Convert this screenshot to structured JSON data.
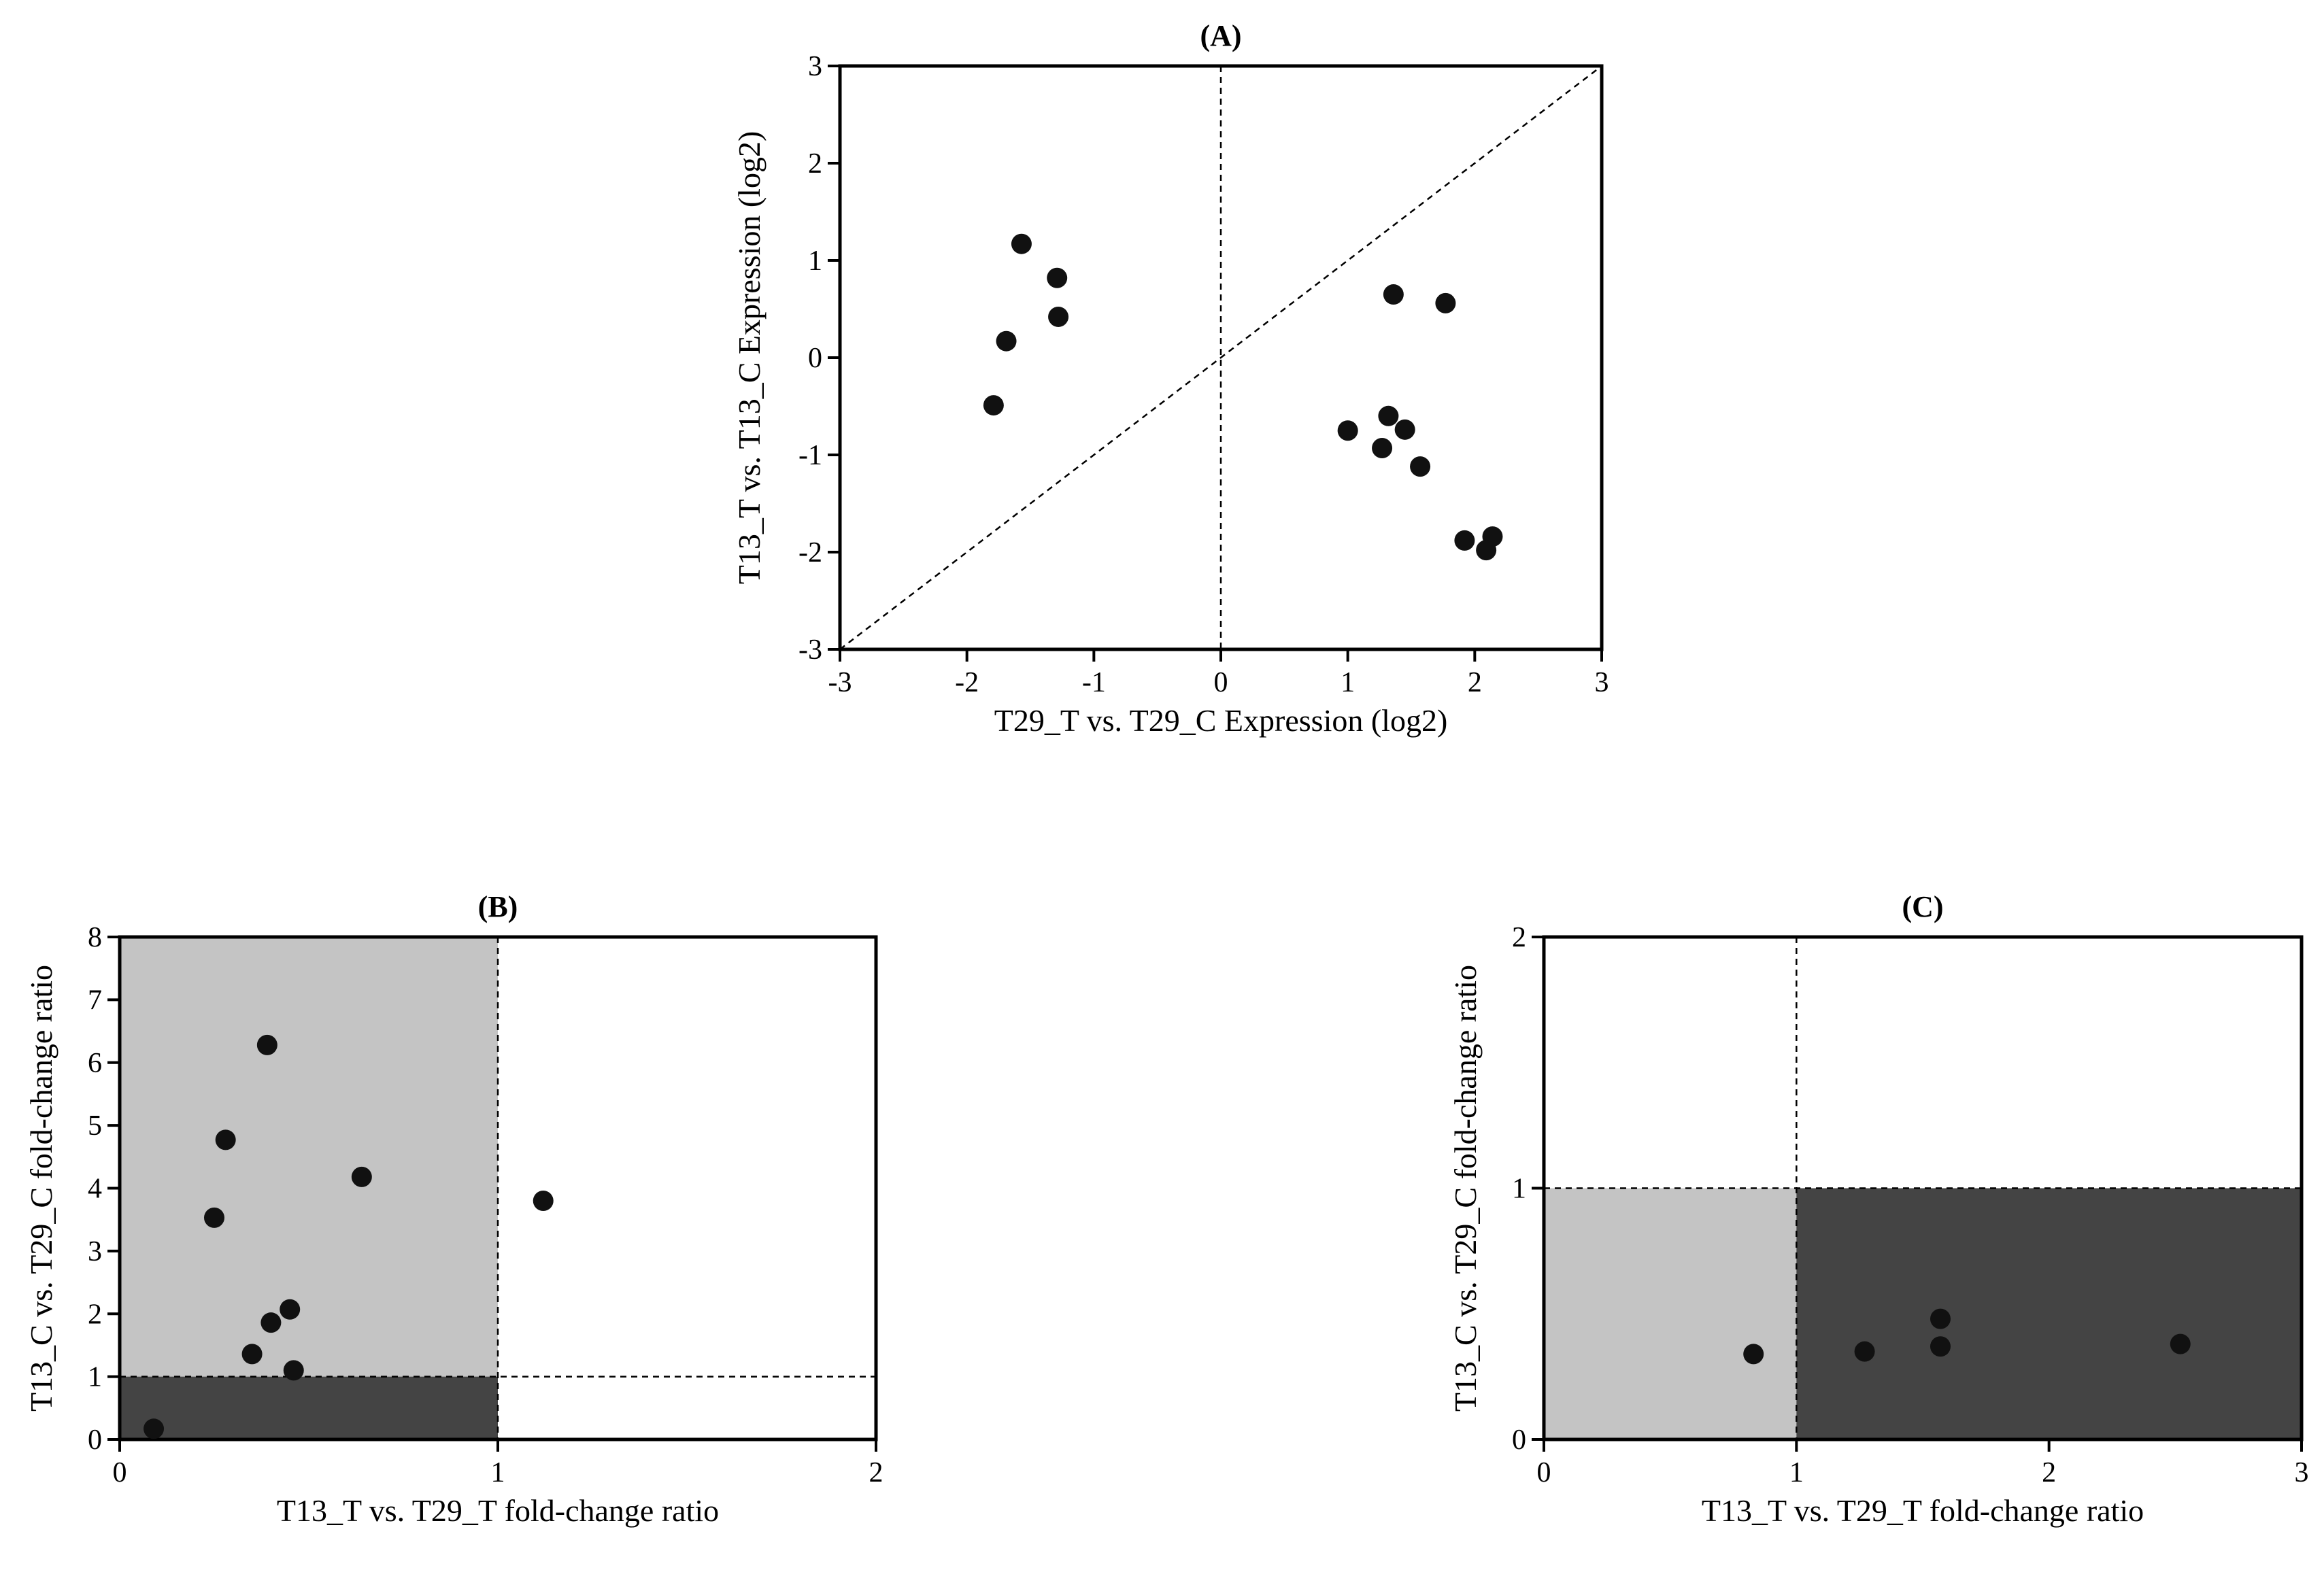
{
  "chart_data": [
    {
      "id": "A",
      "type": "scatter",
      "title": "(A)",
      "xlabel": "T29_T vs. T29_C Expression (log2)",
      "ylabel": "T13_T vs. T13_C Expression  (log2)",
      "xlim": [
        -3,
        3
      ],
      "ylim": [
        -3,
        3
      ],
      "xticks": [
        -3,
        -2,
        -1,
        0,
        1,
        2,
        3
      ],
      "yticks": [
        -3,
        -2,
        -1,
        0,
        1,
        2,
        3
      ],
      "grid": false,
      "reference_lines": [
        "diagonal y = x (dashed)",
        "vertical x = 0 (dashed)"
      ],
      "point_color": "#111111",
      "points": [
        {
          "x": -1.57,
          "y": 1.17
        },
        {
          "x": -1.29,
          "y": 0.82
        },
        {
          "x": -1.28,
          "y": 0.42
        },
        {
          "x": -1.69,
          "y": 0.17
        },
        {
          "x": -1.79,
          "y": -0.49
        },
        {
          "x": 1.36,
          "y": 0.65
        },
        {
          "x": 1.77,
          "y": 0.56
        },
        {
          "x": 1.0,
          "y": -0.75
        },
        {
          "x": 1.32,
          "y": -0.6
        },
        {
          "x": 1.45,
          "y": -0.74
        },
        {
          "x": 1.27,
          "y": -0.93
        },
        {
          "x": 1.57,
          "y": -1.12
        },
        {
          "x": 1.92,
          "y": -1.88
        },
        {
          "x": 2.14,
          "y": -1.84
        },
        {
          "x": 2.09,
          "y": -1.98
        }
      ]
    },
    {
      "id": "B",
      "type": "scatter",
      "title": "(B)",
      "xlabel": "T13_T vs. T29_T fold-change ratio",
      "ylabel": "T13_C vs. T29_C fold-change ratio",
      "xlim": [
        0,
        2
      ],
      "ylim": [
        0,
        8
      ],
      "xticks": [
        0,
        1,
        2
      ],
      "yticks": [
        0,
        1,
        2,
        3,
        4,
        5,
        6,
        7,
        8
      ],
      "grid": false,
      "threshold_lines": {
        "x": 1,
        "y": 1
      },
      "shaded_regions": [
        {
          "x": [
            0,
            1
          ],
          "y": [
            1,
            8
          ],
          "color": "#c4c4c4"
        },
        {
          "x": [
            0,
            1
          ],
          "y": [
            0,
            1
          ],
          "color": "#444444"
        }
      ],
      "point_color": "#111111",
      "points": [
        {
          "x": 0.39,
          "y": 6.28
        },
        {
          "x": 0.28,
          "y": 4.77
        },
        {
          "x": 0.64,
          "y": 4.18
        },
        {
          "x": 0.25,
          "y": 3.53
        },
        {
          "x": 1.12,
          "y": 3.8
        },
        {
          "x": 0.45,
          "y": 2.07
        },
        {
          "x": 0.4,
          "y": 1.86
        },
        {
          "x": 0.35,
          "y": 1.36
        },
        {
          "x": 0.46,
          "y": 1.1
        },
        {
          "x": 0.09,
          "y": 0.17
        }
      ]
    },
    {
      "id": "C",
      "type": "scatter",
      "title": "(C)",
      "xlabel": "T13_T vs. T29_T fold-change ratio",
      "ylabel": "T13_C vs. T29_C fold-change ratio",
      "xlim": [
        0,
        3
      ],
      "ylim": [
        0,
        2
      ],
      "xticks": [
        0,
        1,
        2,
        3
      ],
      "yticks": [
        0,
        1,
        2
      ],
      "grid": false,
      "threshold_lines": {
        "x": 1,
        "y": 1
      },
      "shaded_regions": [
        {
          "x": [
            0,
            1
          ],
          "y": [
            0,
            1
          ],
          "color": "#c4c4c4"
        },
        {
          "x": [
            1,
            3
          ],
          "y": [
            0,
            1
          ],
          "color": "#444444"
        }
      ],
      "point_color": "#111111",
      "points": [
        {
          "x": 0.83,
          "y": 0.34
        },
        {
          "x": 1.27,
          "y": 0.35
        },
        {
          "x": 1.57,
          "y": 0.48
        },
        {
          "x": 1.57,
          "y": 0.37
        },
        {
          "x": 2.52,
          "y": 0.38
        }
      ]
    }
  ]
}
